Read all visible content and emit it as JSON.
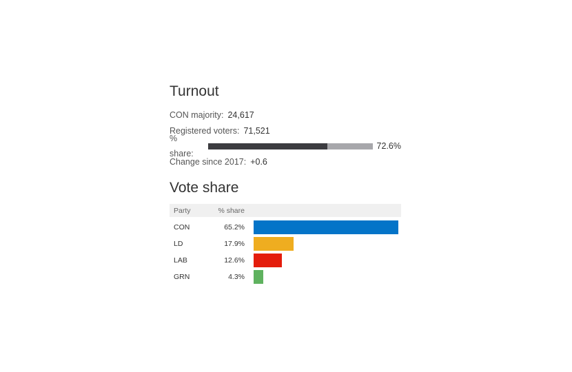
{
  "turnout": {
    "title": "Turnout",
    "majority_label": "CON majority:",
    "majority_value": "24,617",
    "registered_label": "Registered voters:",
    "registered_value": "71,521",
    "share_label": "% share:",
    "share_value": "72.6%",
    "share_fraction": 0.726,
    "change_label": "Change since 2017:",
    "change_value": "+0.6"
  },
  "vote_share": {
    "title": "Vote share",
    "col_party": "Party",
    "col_share": "% share",
    "rows": [
      {
        "party": "CON",
        "share": "65.2%",
        "value": 65.2,
        "color": "#0474c8"
      },
      {
        "party": "LD",
        "share": "17.9%",
        "value": 17.9,
        "color": "#efad20"
      },
      {
        "party": "LAB",
        "share": "12.6%",
        "value": 12.6,
        "color": "#e41d0c"
      },
      {
        "party": "GRN",
        "share": "4.3%",
        "value": 4.3,
        "color": "#5fb25f"
      }
    ]
  }
}
